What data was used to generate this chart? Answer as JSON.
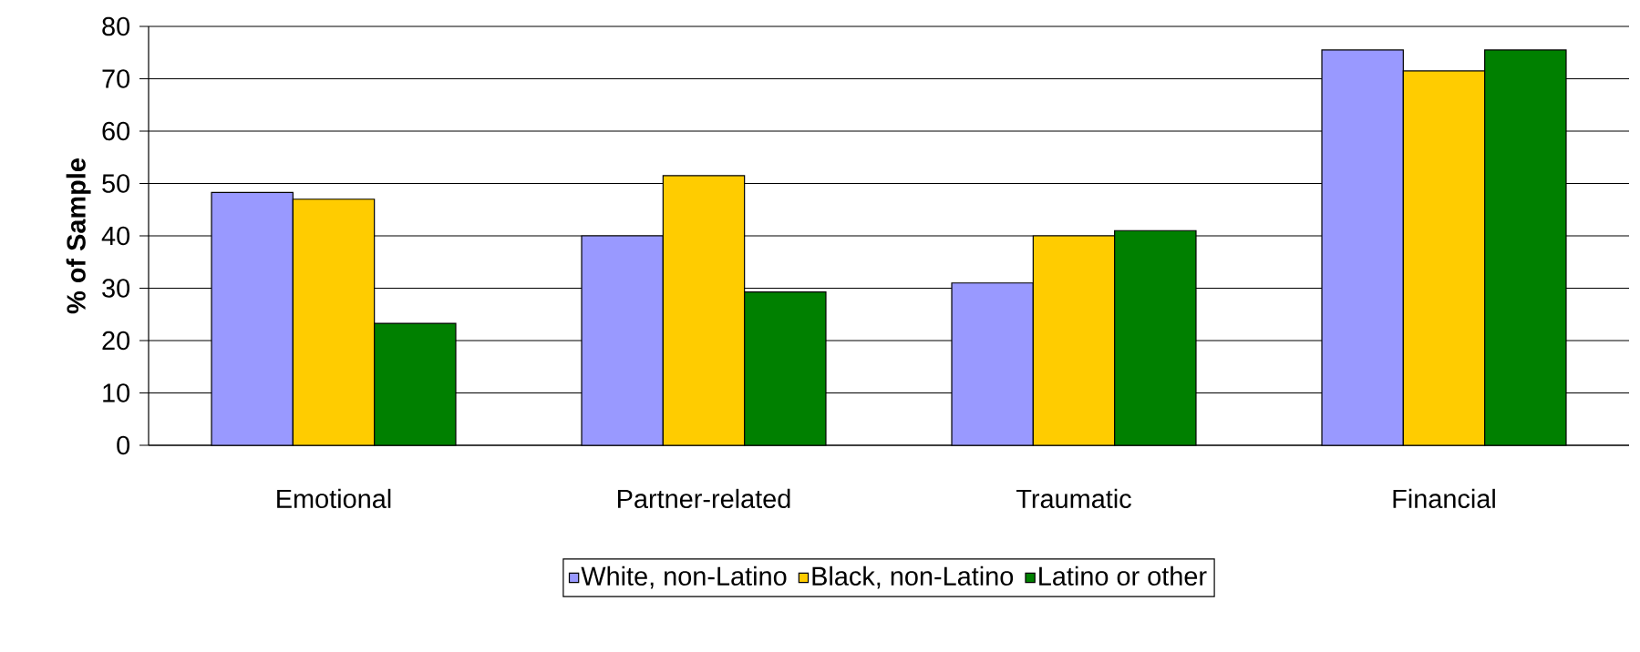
{
  "chart_data": {
    "type": "bar",
    "ylabel": "% of Sample",
    "categories": [
      "Emotional",
      "Partner-related",
      "Traumatic",
      "Financial"
    ],
    "series": [
      {
        "name": "White, non-Latino",
        "color": "#9999ff",
        "values": [
          48.3,
          40,
          31,
          75.5
        ]
      },
      {
        "name": "Black, non-Latino",
        "color": "#ffcc00",
        "values": [
          47,
          51.5,
          40,
          71.5
        ]
      },
      {
        "name": "Latino or other",
        "color": "#008000",
        "values": [
          23.3,
          29.3,
          41,
          75.5
        ]
      }
    ],
    "ylim": [
      0,
      80
    ],
    "yticks": [
      0,
      10,
      20,
      30,
      40,
      50,
      60,
      70,
      80
    ],
    "grid": "y",
    "legend": "bottom"
  }
}
